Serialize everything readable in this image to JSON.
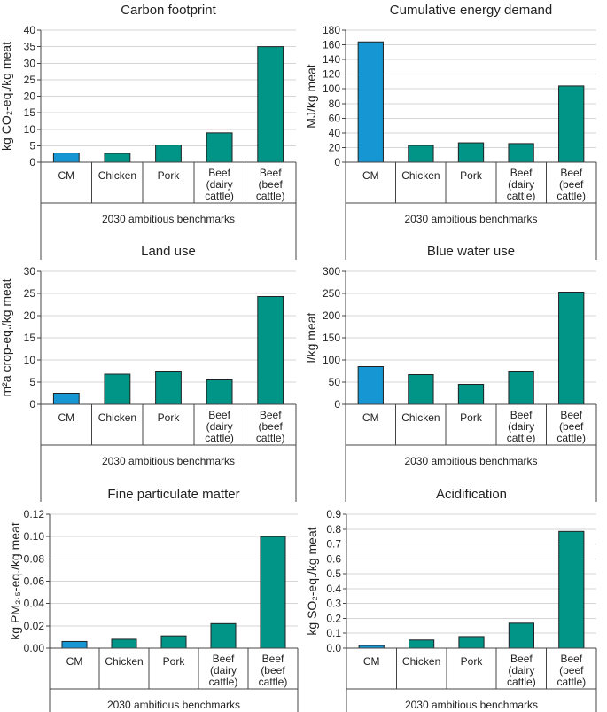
{
  "chart_data": [
    {
      "type": "bar",
      "title": "Carbon footprint",
      "ylabel": "kg CO₂-eq./kg meat",
      "group_label": "2030 ambitious benchmarks",
      "categories": [
        [
          "CM"
        ],
        [
          "Chicken"
        ],
        [
          "Pork"
        ],
        [
          "Beef",
          "(dairy",
          "cattle)"
        ],
        [
          "Beef",
          "(beef",
          "cattle)"
        ]
      ],
      "values": [
        2.8,
        2.7,
        5.2,
        8.9,
        35
      ],
      "ylim": [
        0,
        40
      ],
      "yticks": [
        "0",
        "5",
        "10",
        "15",
        "20",
        "25",
        "30",
        "35",
        "40"
      ],
      "grid": true,
      "colors": [
        "#1696d2",
        "#009587",
        "#009587",
        "#009587",
        "#009587"
      ]
    },
    {
      "type": "bar",
      "title": "Cumulative energy demand",
      "ylabel": "MJ/kg meat",
      "group_label": "2030 ambitious benchmarks",
      "categories": [
        [
          "CM"
        ],
        [
          "Chicken"
        ],
        [
          "Pork"
        ],
        [
          "Beef",
          "(dairy",
          "cattle)"
        ],
        [
          "Beef",
          "(beef",
          "cattle)"
        ]
      ],
      "values": [
        164,
        23,
        26.5,
        25.5,
        104
      ],
      "ylim": [
        0,
        180
      ],
      "yticks": [
        "0",
        "20",
        "40",
        "60",
        "80",
        "100",
        "120",
        "140",
        "160",
        "180"
      ],
      "grid": true,
      "colors": [
        "#1696d2",
        "#009587",
        "#009587",
        "#009587",
        "#009587"
      ]
    },
    {
      "type": "bar",
      "title": "Land use",
      "ylabel": "m²a crop-eq./kg meat",
      "group_label": "2030 ambitious benchmarks",
      "categories": [
        [
          "CM"
        ],
        [
          "Chicken"
        ],
        [
          "Pork"
        ],
        [
          "Beef",
          "(dairy",
          "cattle)"
        ],
        [
          "Beef",
          "(beef",
          "cattle)"
        ]
      ],
      "values": [
        2.5,
        6.8,
        7.5,
        5.5,
        24.3
      ],
      "ylim": [
        0,
        30
      ],
      "yticks": [
        "0",
        "5",
        "10",
        "15",
        "20",
        "25",
        "30"
      ],
      "grid": true,
      "colors": [
        "#1696d2",
        "#009587",
        "#009587",
        "#009587",
        "#009587"
      ]
    },
    {
      "type": "bar",
      "title": "Blue water use",
      "ylabel": "l/kg meat",
      "group_label": "2030 ambitious benchmarks",
      "categories": [
        [
          "CM"
        ],
        [
          "Chicken"
        ],
        [
          "Pork"
        ],
        [
          "Beef",
          "(dairy",
          "cattle)"
        ],
        [
          "Beef",
          "(beef",
          "cattle)"
        ]
      ],
      "values": [
        85,
        67,
        45,
        75,
        253
      ],
      "ylim": [
        0,
        300
      ],
      "yticks": [
        "0",
        "50",
        "100",
        "150",
        "200",
        "250",
        "300"
      ],
      "grid": true,
      "colors": [
        "#1696d2",
        "#009587",
        "#009587",
        "#009587",
        "#009587"
      ]
    },
    {
      "type": "bar",
      "title": "Fine particulate matter",
      "ylabel": "kg PM₂.₅-eq./kg meat",
      "group_label": "2030 ambitious benchmarks",
      "categories": [
        [
          "CM"
        ],
        [
          "Chicken"
        ],
        [
          "Pork"
        ],
        [
          "Beef",
          "(dairy",
          "cattle)"
        ],
        [
          "Beef",
          "(beef",
          "cattle)"
        ]
      ],
      "values": [
        0.006,
        0.008,
        0.011,
        0.022,
        0.1
      ],
      "ylim": [
        0,
        0.12
      ],
      "yticks": [
        "0.00",
        "0.02",
        "0.04",
        "0.06",
        "0.08",
        "0.10",
        "0.12"
      ],
      "grid": true,
      "colors": [
        "#1696d2",
        "#009587",
        "#009587",
        "#009587",
        "#009587"
      ]
    },
    {
      "type": "bar",
      "title": "Acidification",
      "ylabel": "kg SO₂-eq./kg meat",
      "group_label": "2030 ambitious benchmarks",
      "categories": [
        [
          "CM"
        ],
        [
          "Chicken"
        ],
        [
          "Pork"
        ],
        [
          "Beef",
          "(dairy",
          "cattle)"
        ],
        [
          "Beef",
          "(beef",
          "cattle)"
        ]
      ],
      "values": [
        0.018,
        0.055,
        0.078,
        0.168,
        0.785
      ],
      "ylim": [
        0,
        0.9
      ],
      "yticks": [
        "0.0",
        "0.1",
        "0.2",
        "0.3",
        "0.4",
        "0.5",
        "0.6",
        "0.7",
        "0.8",
        "0.9"
      ],
      "grid": true,
      "colors": [
        "#1696d2",
        "#009587",
        "#009587",
        "#009587",
        "#009587"
      ]
    }
  ]
}
